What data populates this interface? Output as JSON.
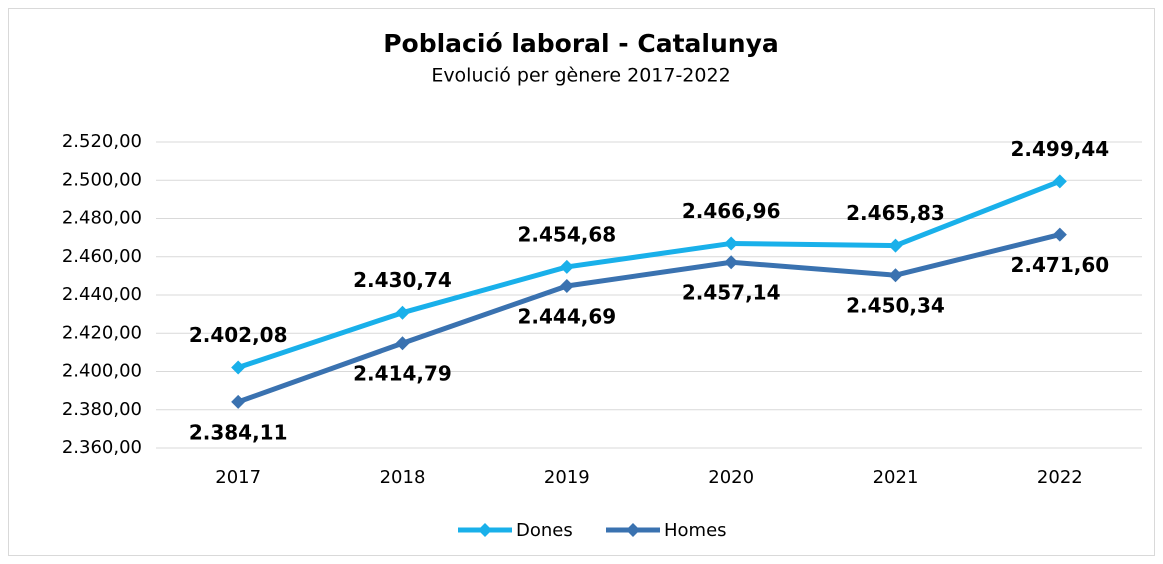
{
  "chart_data": {
    "type": "line",
    "title": "Població laboral - Catalunya",
    "subtitle": "Evolució per gènere 2017-2022",
    "categories": [
      "2017",
      "2018",
      "2019",
      "2020",
      "2021",
      "2022"
    ],
    "series": [
      {
        "name": "Dones",
        "color": "#19b0ea",
        "values": [
          2402.08,
          2430.74,
          2454.68,
          2466.96,
          2465.83,
          2499.44
        ],
        "value_labels": [
          "2.402,08",
          "2.430,74",
          "2.454,68",
          "2.466,96",
          "2.465,83",
          "2.499,44"
        ]
      },
      {
        "name": "Homes",
        "color": "#3a72b0",
        "values": [
          2384.11,
          2414.79,
          2444.69,
          2457.14,
          2450.34,
          2471.6
        ],
        "value_labels": [
          "2.384,11",
          "2.414,79",
          "2.444,69",
          "2.457,14",
          "2.450,34",
          "2.471,60"
        ]
      }
    ],
    "ylim": [
      2360,
      2520
    ],
    "yticks": [
      {
        "value": 2360,
        "label": "2.360,00"
      },
      {
        "value": 2380,
        "label": "2.380,00"
      },
      {
        "value": 2400,
        "label": "2.400,00"
      },
      {
        "value": 2420,
        "label": "2.420,00"
      },
      {
        "value": 2440,
        "label": "2.440,00"
      },
      {
        "value": 2460,
        "label": "2.460,00"
      },
      {
        "value": 2480,
        "label": "2.480,00"
      },
      {
        "value": 2500,
        "label": "2.500,00"
      },
      {
        "value": 2520,
        "label": "2.520,00"
      }
    ],
    "grid": true,
    "legend": "bottom"
  }
}
